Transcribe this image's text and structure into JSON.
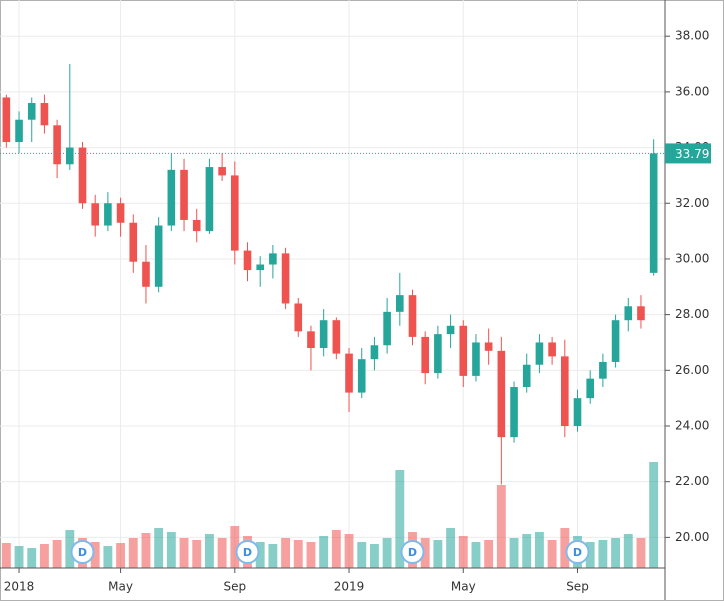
{
  "chart_data": {
    "type": "candlestick",
    "categories": [
      null,
      "2018",
      null,
      null,
      null,
      null,
      null,
      null,
      null,
      "May",
      null,
      null,
      null,
      null,
      null,
      null,
      null,
      null,
      "Sep",
      null,
      null,
      null,
      null,
      null,
      null,
      null,
      null,
      "2019",
      null,
      null,
      null,
      null,
      null,
      null,
      null,
      null,
      "May",
      null,
      null,
      null,
      null,
      null,
      null,
      null,
      null,
      "Sep",
      null,
      null,
      null,
      null,
      null,
      null
    ],
    "open": [
      35.8,
      34.2,
      35.0,
      35.6,
      34.8,
      33.4,
      34.0,
      32.0,
      31.2,
      32.0,
      31.3,
      29.9,
      29.0,
      31.2,
      33.2,
      31.4,
      31.0,
      33.3,
      33.0,
      30.3,
      29.6,
      29.8,
      30.2,
      28.4,
      27.4,
      26.8,
      27.8,
      26.6,
      25.2,
      26.4,
      26.9,
      28.1,
      28.7,
      27.2,
      25.9,
      27.3,
      27.6,
      25.8,
      27.0,
      26.7,
      23.6,
      25.4,
      26.2,
      27.0,
      26.5,
      24.0,
      25.0,
      25.7,
      26.3,
      27.8,
      28.3,
      29.5
    ],
    "high": [
      35.9,
      35.3,
      35.8,
      35.9,
      35.0,
      37.0,
      34.2,
      32.3,
      32.4,
      32.2,
      31.6,
      30.5,
      31.5,
      33.8,
      33.6,
      31.8,
      33.6,
      33.8,
      33.5,
      30.6,
      30.1,
      30.5,
      30.4,
      28.6,
      27.6,
      28.2,
      27.9,
      26.8,
      26.8,
      27.2,
      28.6,
      29.5,
      28.9,
      27.4,
      27.6,
      28.0,
      27.8,
      27.3,
      27.5,
      27.2,
      25.6,
      26.6,
      27.3,
      27.2,
      27.1,
      25.3,
      26.0,
      26.6,
      28.0,
      28.6,
      28.7,
      34.3
    ],
    "low": [
      34.0,
      33.8,
      34.2,
      34.5,
      32.9,
      33.2,
      31.8,
      30.8,
      31.0,
      30.8,
      29.5,
      28.4,
      28.8,
      31.0,
      31.0,
      30.6,
      30.9,
      32.8,
      29.8,
      29.2,
      29.0,
      29.3,
      28.2,
      27.2,
      26.0,
      26.5,
      26.4,
      24.5,
      25.0,
      26.0,
      26.6,
      27.6,
      26.9,
      25.5,
      25.7,
      26.8,
      25.4,
      25.6,
      26.2,
      21.9,
      23.4,
      25.2,
      25.9,
      26.2,
      23.6,
      23.8,
      24.8,
      25.4,
      26.1,
      27.4,
      27.5,
      29.4
    ],
    "close": [
      34.2,
      35.0,
      35.6,
      34.8,
      33.4,
      34.0,
      32.0,
      31.2,
      32.0,
      31.3,
      29.9,
      29.0,
      31.2,
      33.2,
      31.4,
      31.0,
      33.3,
      33.0,
      30.3,
      29.6,
      29.8,
      30.2,
      28.4,
      27.4,
      26.8,
      27.8,
      26.6,
      25.2,
      26.4,
      26.9,
      28.1,
      28.7,
      27.2,
      25.9,
      27.3,
      27.6,
      25.8,
      27.0,
      26.7,
      23.6,
      25.4,
      26.2,
      27.0,
      26.5,
      24.0,
      25.0,
      25.7,
      26.3,
      27.8,
      28.3,
      27.8,
      33.79
    ],
    "volume": [
      25,
      22,
      20,
      24,
      28,
      38,
      30,
      26,
      22,
      25,
      30,
      35,
      40,
      36,
      30,
      28,
      34,
      30,
      42,
      32,
      26,
      24,
      30,
      28,
      26,
      32,
      38,
      34,
      26,
      24,
      30,
      98,
      36,
      30,
      28,
      40,
      32,
      26,
      28,
      83,
      30,
      34,
      36,
      28,
      40,
      32,
      26,
      28,
      30,
      34,
      30,
      106
    ],
    "up_color": "#26a69a",
    "down_color": "#ef5350",
    "events": [
      {
        "index": 6,
        "label": "D"
      },
      {
        "index": 19,
        "label": "D"
      },
      {
        "index": 32,
        "label": "D"
      },
      {
        "index": 45,
        "label": "D"
      }
    ],
    "ylim": [
      18.9,
      39.3
    ],
    "yticks": [
      {
        "value": 20,
        "label": "20.00"
      },
      {
        "value": 22,
        "label": "22.00"
      },
      {
        "value": 24,
        "label": "24.00"
      },
      {
        "value": 26,
        "label": "26.00"
      },
      {
        "value": 28,
        "label": "28.00"
      },
      {
        "value": 30,
        "label": "30.00"
      },
      {
        "value": 32,
        "label": "32.00"
      },
      {
        "value": 34,
        "label": "34.00"
      },
      {
        "value": 36,
        "label": "36.00"
      },
      {
        "value": 38,
        "label": "38.00"
      }
    ],
    "volume_lim": [
      0,
      120
    ],
    "grid": true
  }
}
